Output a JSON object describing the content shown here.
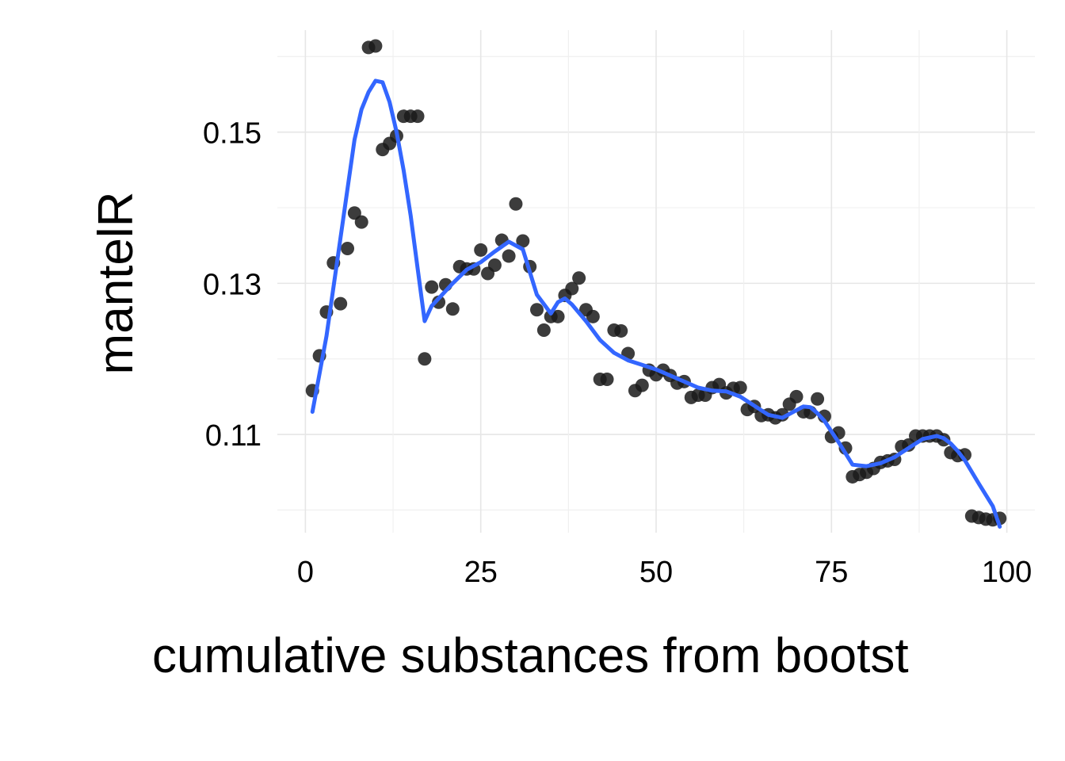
{
  "chart_data": {
    "type": "scatter",
    "title": "",
    "xlabel": "cumulative substances from bootst",
    "ylabel": "mantelR",
    "xlim": [
      -4,
      104
    ],
    "ylim": [
      0.097,
      0.1635
    ],
    "x_ticks": [
      0,
      25,
      50,
      75,
      100
    ],
    "x_tick_labels": [
      "0",
      "25",
      "50",
      "75",
      "100"
    ],
    "y_ticks": [
      0.11,
      0.13,
      0.15
    ],
    "y_tick_labels": [
      "0.11",
      "0.13",
      "0.15"
    ],
    "y_minor_ticks": [
      0.1,
      0.12,
      0.14,
      0.16
    ],
    "grid": true,
    "point_color": "#1a1a1a",
    "line_color": "#3366FF",
    "series": [
      {
        "type": "points",
        "x": [
          1,
          2,
          3,
          4,
          5,
          6,
          7,
          8,
          9,
          10,
          11,
          12,
          13,
          14,
          15,
          16,
          17,
          18,
          19,
          20,
          21,
          22,
          23,
          24,
          25,
          26,
          27,
          28,
          29,
          30,
          31,
          32,
          33,
          34,
          35,
          36,
          37,
          38,
          39,
          40,
          41,
          42,
          43,
          44,
          45,
          46,
          47,
          48,
          49,
          50,
          51,
          52,
          53,
          54,
          55,
          56,
          57,
          58,
          59,
          60,
          61,
          62,
          63,
          64,
          65,
          66,
          67,
          68,
          69,
          70,
          71,
          72,
          73,
          74,
          75,
          76,
          77,
          78,
          79,
          80,
          81,
          82,
          83,
          84,
          85,
          86,
          87,
          88,
          89,
          90,
          91,
          92,
          93,
          94,
          95,
          96,
          97,
          98,
          99
        ],
        "y": [
          0.1158,
          0.1204,
          0.1262,
          0.1327,
          0.1273,
          0.1346,
          0.1393,
          0.1381,
          0.1612,
          0.1614,
          0.1477,
          0.1485,
          0.1495,
          0.1521,
          0.1521,
          0.1521,
          0.12,
          0.1295,
          0.1275,
          0.1298,
          0.1266,
          0.1322,
          0.1319,
          0.1319,
          0.1344,
          0.1313,
          0.1324,
          0.1357,
          0.1336,
          0.1405,
          0.1356,
          0.1322,
          0.1265,
          0.1238,
          0.1256,
          0.1256,
          0.1284,
          0.1293,
          0.1307,
          0.1265,
          0.1256,
          0.1173,
          0.1173,
          0.1238,
          0.1237,
          0.1207,
          0.1158,
          0.1165,
          0.1185,
          0.1179,
          0.1185,
          0.1178,
          0.1168,
          0.117,
          0.1149,
          0.1152,
          0.1152,
          0.1162,
          0.1166,
          0.1155,
          0.1161,
          0.1162,
          0.1133,
          0.1137,
          0.1125,
          0.1126,
          0.1122,
          0.1126,
          0.114,
          0.115,
          0.113,
          0.1129,
          0.1147,
          0.1124,
          0.1097,
          0.1102,
          0.1082,
          0.1044,
          0.1047,
          0.105,
          0.1055,
          0.1063,
          0.1065,
          0.1067,
          0.1084,
          0.1086,
          0.1098,
          0.1098,
          0.1098,
          0.1098,
          0.1093,
          0.1076,
          0.1072,
          0.1073,
          0.0992,
          0.099,
          0.0988,
          0.0987,
          0.0989
        ]
      },
      {
        "type": "smooth",
        "x": [
          1,
          3,
          5,
          7,
          8,
          9,
          10,
          11,
          12,
          13,
          14,
          15,
          16,
          17,
          18,
          19,
          21,
          23,
          25,
          27,
          29,
          31,
          33,
          35,
          36,
          37,
          38,
          40,
          42,
          44,
          46,
          48,
          50,
          52,
          54,
          56,
          58,
          60,
          62,
          64,
          66,
          68,
          70,
          71,
          72,
          73,
          74,
          76,
          78,
          80,
          82,
          84,
          86,
          88,
          90,
          91,
          92,
          93,
          94,
          96,
          98,
          99
        ],
        "y": [
          0.113,
          0.123,
          0.136,
          0.149,
          0.153,
          0.1553,
          0.1568,
          0.1566,
          0.154,
          0.15,
          0.145,
          0.139,
          0.132,
          0.125,
          0.127,
          0.128,
          0.13,
          0.1318,
          0.1328,
          0.1342,
          0.1355,
          0.1345,
          0.1285,
          0.126,
          0.1275,
          0.128,
          0.1272,
          0.125,
          0.1225,
          0.1208,
          0.1198,
          0.1192,
          0.1186,
          0.1178,
          0.117,
          0.1162,
          0.1158,
          0.1157,
          0.115,
          0.1138,
          0.1126,
          0.1122,
          0.1132,
          0.1137,
          0.1136,
          0.1128,
          0.1118,
          0.109,
          0.106,
          0.1058,
          0.1062,
          0.107,
          0.1082,
          0.1094,
          0.1098,
          0.1095,
          0.1088,
          0.1078,
          0.1066,
          0.1035,
          0.1005,
          0.0978
        ]
      }
    ]
  }
}
